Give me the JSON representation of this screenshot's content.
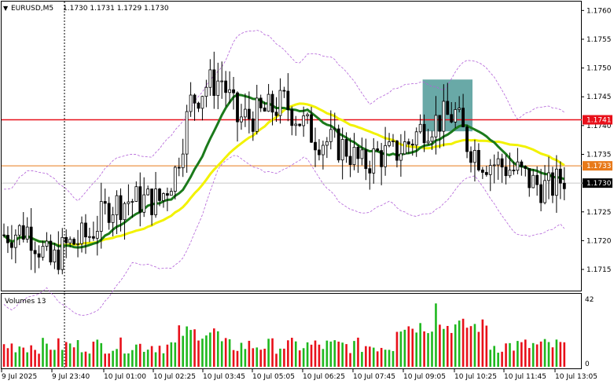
{
  "header": {
    "symbol": "EURUSD,M5",
    "quote": "1.1730 1.1731 1.1729 1.1730"
  },
  "price_axis": {
    "ticks": [
      "1.1760",
      "1.1755",
      "1.1750",
      "1.1745",
      "1.1740",
      "1.1735",
      "1.1730",
      "1.1725",
      "1.1720",
      "1.1715"
    ],
    "marker_red": "1.1741",
    "marker_orange": "1.1733",
    "marker_current": "1.1730"
  },
  "volume_panel": {
    "title": "Volumes 13",
    "axis_max": "42",
    "axis_min": "0"
  },
  "time_axis": {
    "ticks": [
      "9 Jul 2025",
      "9 Jul 23:40",
      "10 Jul 01:00",
      "10 Jul 02:25",
      "10 Jul 03:45",
      "10 Jul 05:05",
      "10 Jul 06:25",
      "10 Jul 07:45",
      "10 Jul 09:05",
      "10 Jul 10:25",
      "10 Jul 11:45",
      "10 Jul 13:05"
    ]
  },
  "colors": {
    "bull": "#000000",
    "bear": "#000000",
    "ma_fast": "#1b7a1b",
    "ma_slow": "#f2f200",
    "band": "#b260d8",
    "level_red": "#e8101a",
    "level_orange": "#e87a1a",
    "highlight_box": "#4f9a98",
    "vol_up": "#1fb81f",
    "vol_down": "#e8101a"
  },
  "chart_data": {
    "type": "candlestick",
    "symbol": "EURUSD",
    "timeframe": "M5",
    "y_range": [
      1.1712,
      1.1761
    ],
    "levels": [
      1.1741,
      1.1733
    ],
    "current_price": 1.173,
    "highlight_zone": {
      "from_bar": 108,
      "to_bar": 120,
      "price_low": 1.1739,
      "price_high": 1.1748
    },
    "volume_range": [
      0,
      42
    ]
  }
}
